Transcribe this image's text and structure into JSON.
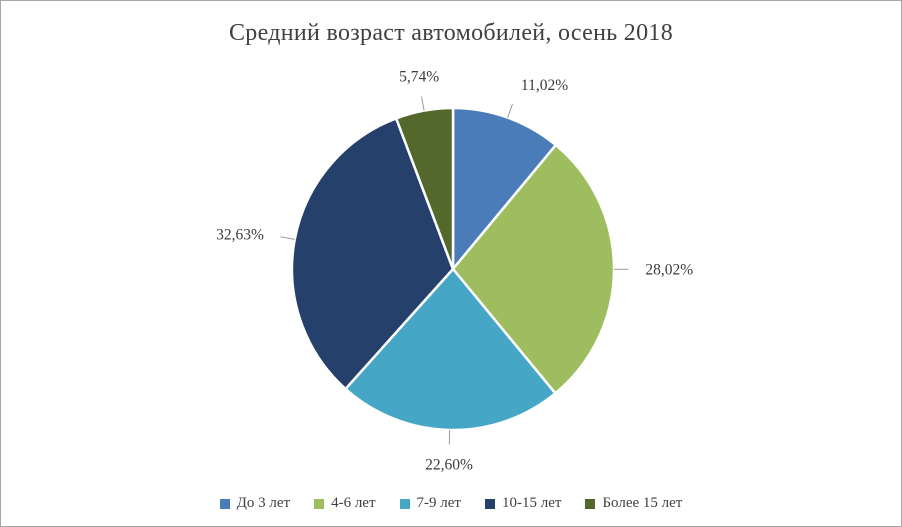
{
  "chart_data": {
    "type": "pie",
    "title": "Средний возраст автомобилей, осень 2018",
    "legend_position": "bottom",
    "start_angle_deg": 0,
    "direction": "clockwise",
    "value_suffix": "%",
    "decimal_separator": ",",
    "slices": [
      {
        "label": "До 3 лет",
        "value": 11.02,
        "display": "11,02%",
        "color": "#4a7cba"
      },
      {
        "label": "4-6 лет",
        "value": 28.02,
        "display": "28,02%",
        "color": "#9dbd5f"
      },
      {
        "label": "7-9 лет",
        "value": 22.6,
        "display": "22,60%",
        "color": "#45a6c6"
      },
      {
        "label": "10-15 лет",
        "value": 32.63,
        "display": "32,63%",
        "color": "#25406a"
      },
      {
        "label": "Более 15 лет",
        "value": 5.74,
        "display": "5,74%",
        "color": "#55682c"
      }
    ]
  }
}
